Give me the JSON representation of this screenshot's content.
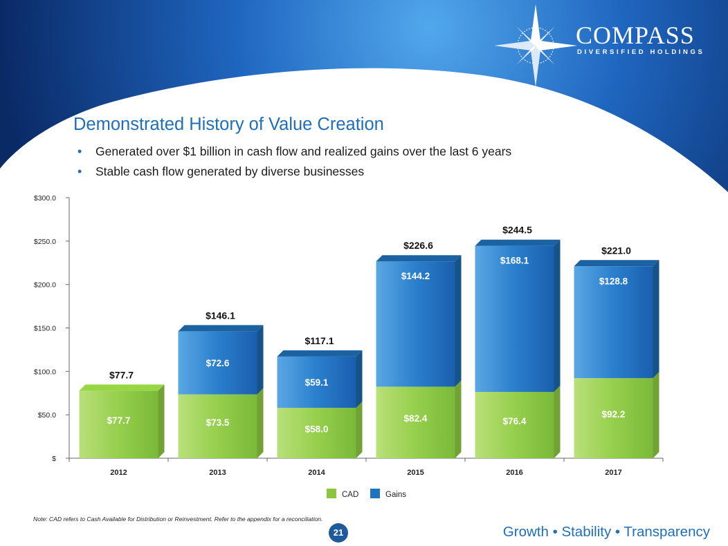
{
  "brand": {
    "name": "COMPASS",
    "subtitle": "DIVERSIFIED HOLDINGS"
  },
  "slide": {
    "title": "Demonstrated History of Value Creation",
    "bullets": [
      "Generated over $1 billion in cash flow and realized gains over the last 6 years",
      "Stable cash flow generated by diverse businesses"
    ],
    "note": "Note: CAD refers to Cash Available for Distribution or Reinvestment. Refer to the appendix for a reconciliation.",
    "page_number": "21",
    "tagline": "Growth • Stability • Transparency"
  },
  "colors": {
    "cad": "#8cc63f",
    "gains": "#1e73be",
    "title": "#1f6fb8",
    "header_dark": "#0b2f6e"
  },
  "chart_data": {
    "type": "bar",
    "stacked": true,
    "categories": [
      "2012",
      "2013",
      "2014",
      "2015",
      "2016",
      "2017"
    ],
    "series": [
      {
        "name": "CAD",
        "values": [
          77.7,
          73.5,
          58.0,
          82.4,
          76.4,
          92.2
        ],
        "labels": [
          "$77.7",
          "$73.5",
          "$58.0",
          "$82.4",
          "$76.4",
          "$92.2"
        ]
      },
      {
        "name": "Gains",
        "values": [
          0,
          72.6,
          59.1,
          144.2,
          168.1,
          128.8
        ],
        "labels": [
          "",
          "$72.6",
          "$59.1",
          "$144.2",
          "$168.1",
          "$128.8"
        ]
      }
    ],
    "totals": [
      77.7,
      146.1,
      117.1,
      226.6,
      244.5,
      221.0
    ],
    "total_labels": [
      "$77.7",
      "$146.1",
      "$117.1",
      "$226.6",
      "$244.5",
      "$221.0"
    ],
    "yticks": [
      0,
      50,
      100,
      150,
      200,
      250,
      300
    ],
    "ytick_labels": [
      "$",
      "$50.0",
      "$100.0",
      "$150.0",
      "$200.0",
      "$250.0",
      "$300.0"
    ],
    "ylim": [
      0,
      300
    ],
    "legend": [
      "CAD",
      "Gains"
    ],
    "legend_position": "bottom",
    "grid": false
  }
}
